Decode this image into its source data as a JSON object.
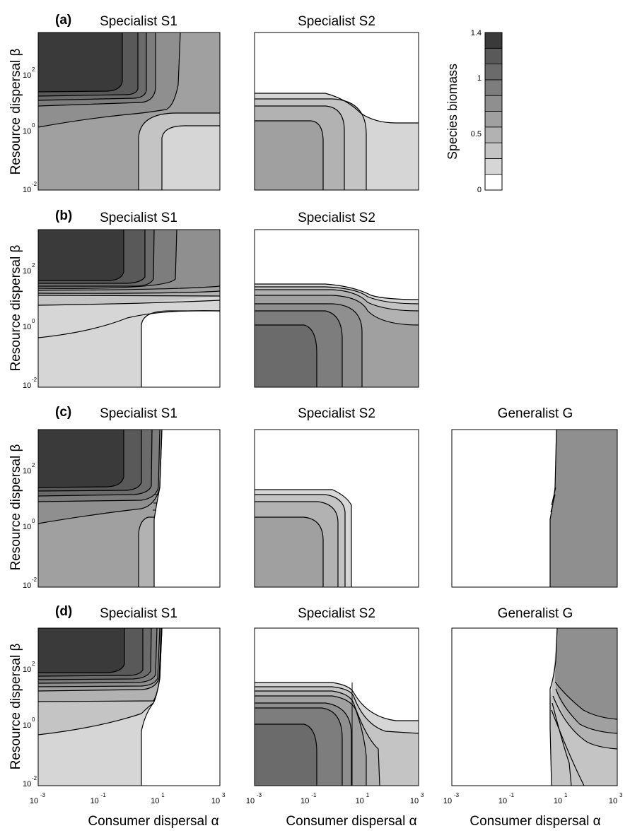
{
  "chart_data": {
    "type": "contour",
    "axis_labels": {
      "x": "Consumer dispersal α",
      "y": "Resource dispersal β"
    },
    "x_scale": "log10",
    "y_scale": "log10",
    "xlim": [
      -3,
      3
    ],
    "ylim": [
      -2,
      3.4
    ],
    "x_tick_exponents": [
      "-3",
      "-1",
      "1",
      "3"
    ],
    "y_tick_exponents": [
      "-2",
      "0",
      "2"
    ],
    "tick_base": "10",
    "colorbar": {
      "label": "Species biomass",
      "range": [
        0,
        1.4
      ],
      "n_levels": 10,
      "ticks": [
        "0",
        "0.5",
        "1",
        "1.4"
      ],
      "level_colors": [
        "#ffffff",
        "#d6d6d6",
        "#c4c4c4",
        "#b2b2b2",
        "#a0a0a0",
        "#8f8f8f",
        "#7d7d7d",
        "#6b6b6b",
        "#595959",
        "#3a3a3a"
      ]
    },
    "rows": [
      {
        "label": "(a)",
        "panels": [
          {
            "title": "Specialist S1",
            "top_level": 9,
            "bottom_level": 4,
            "regions": "top-left dark biomass (>1.26) at low α / high β; level 4 (~0.6) band near β=10^0; level 1 (~0.2) at high α / low β"
          },
          {
            "title": "Specialist S2",
            "top_level": 0,
            "bottom_level": 4,
            "regions": "zero biomass above β≈10^1; levels 2–4 below; level 1 at high α"
          }
        ]
      },
      {
        "label": "(b)",
        "panels": [
          {
            "title": "Specialist S1",
            "top_level": 9,
            "bottom_level": 1,
            "regions": "dark top-left; level 1 lower-left; zero biomass lower-right"
          },
          {
            "title": "Specialist S2",
            "top_level": 0,
            "bottom_level": 7,
            "regions": "zero biomass above β≈10^1.4; levels 1–7 below, darkest at low α"
          }
        ]
      },
      {
        "label": "(c)",
        "panels": [
          {
            "title": "Specialist S1",
            "top_level": 9,
            "bottom_level": 4,
            "regions": "present only for α < ~10^0.7; zero elsewhere"
          },
          {
            "title": "Specialist S2",
            "top_level": 0,
            "bottom_level": 4,
            "regions": "present only below β≈10^1.2 and α < ~10^0.7"
          },
          {
            "title": "Generalist G",
            "top_level": 0,
            "bottom_level": 0,
            "regions": "zero for α < ~10^0.7; level 5 (~0.7) for higher α"
          }
        ]
      },
      {
        "label": "(d)",
        "panels": [
          {
            "title": "Specialist S1",
            "top_level": 9,
            "bottom_level": 1,
            "regions": "present only for α < ~10^0.8; zero elsewhere"
          },
          {
            "title": "Specialist S2",
            "top_level": 0,
            "bottom_level": 7,
            "regions": "levels 1–7 below β≈10^1.5; gradient continues past α=10^0.6"
          },
          {
            "title": "Generalist G",
            "top_level": 0,
            "bottom_level": 0,
            "regions": "zero for α < ~10^0.6; levels 3–5 for higher α"
          }
        ]
      }
    ]
  }
}
